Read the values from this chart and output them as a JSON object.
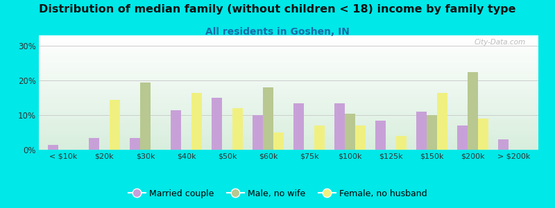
{
  "title": "Distribution of median family (without children < 18) income by family type",
  "subtitle": "All residents in Goshen, IN",
  "categories": [
    "< $10k",
    "$20k",
    "$30k",
    "$40k",
    "$50k",
    "$60k",
    "$75k",
    "$100k",
    "$125k",
    "$150k",
    "$200k",
    "> $200k"
  ],
  "married_couple": [
    1.5,
    3.5,
    3.5,
    11.5,
    15.0,
    10.0,
    13.5,
    13.5,
    8.5,
    11.0,
    7.0,
    3.0
  ],
  "male_no_wife": [
    0.0,
    0.0,
    19.5,
    0.0,
    0.0,
    18.0,
    0.0,
    10.5,
    0.0,
    10.0,
    22.5,
    0.0
  ],
  "female_no_husband": [
    0.0,
    14.5,
    0.0,
    16.5,
    12.0,
    5.0,
    7.0,
    7.0,
    4.0,
    16.5,
    9.0,
    0.0
  ],
  "bar_color_married": "#c8a0d8",
  "bar_color_male": "#b8c890",
  "bar_color_female": "#f0f080",
  "background_color": "#00e8e8",
  "yticks": [
    0,
    10,
    20,
    30
  ],
  "ytick_labels": [
    "0%",
    "10%",
    "20%",
    "30%"
  ],
  "ylim": [
    0,
    33
  ],
  "title_fontsize": 11.5,
  "subtitle_fontsize": 10,
  "legend_labels": [
    "Married couple",
    "Male, no wife",
    "Female, no husband"
  ],
  "watermark": "City-Data.com",
  "bar_width": 0.25
}
